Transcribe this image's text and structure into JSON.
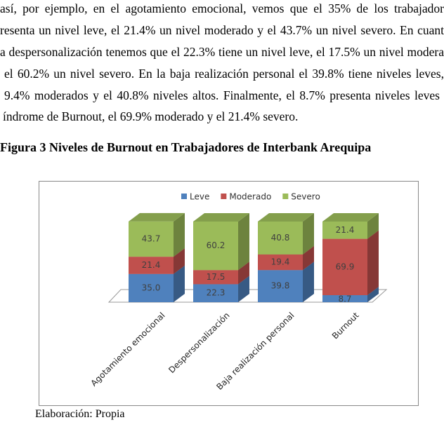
{
  "paragraph": [
    "así, por ejemplo, en el agotamiento emocional, vemos que el 35% de los trabajador",
    "resenta un nivel leve, el 21.4% un nivel moderado y el 43.7% un nivel severo. En cuant",
    "a despersonalización tenemos que el 22.3% tiene un nivel leve, el 17.5% un nivel modera",
    "el 60.2% un nivel severo. En la baja realización personal el 39.8% tiene niveles leves,",
    "9.4% moderados y el 40.8% niveles altos. Finalmente, el 8.7% presenta niveles leves",
    "índrome de Burnout, el 69.9% moderado y el 21.4% severo."
  ],
  "caption": "Figura 3 Niveles de Burnout en Trabajadores de Interbank Arequipa",
  "chart_data": {
    "type": "stacked_bar_3d",
    "categories": [
      "Agotamiento emocional",
      "Despersonalización",
      "Baja realización personal",
      "Burnout"
    ],
    "series": [
      {
        "name": "Leve",
        "color": "#4f81bd",
        "values": [
          35,
          22.3,
          39.8,
          8.7
        ],
        "value_labels": [
          "35.0",
          "22.3",
          "39.8",
          "8.7"
        ]
      },
      {
        "name": "Moderado",
        "color": "#c0504d",
        "values": [
          21.4,
          17.5,
          19.4,
          69.9
        ]
      },
      {
        "name": "Severo",
        "color": "#9bbb59",
        "values": [
          43.7,
          60.2,
          40.8,
          21.4
        ]
      }
    ]
  },
  "footer": "Elaboración: Propia"
}
